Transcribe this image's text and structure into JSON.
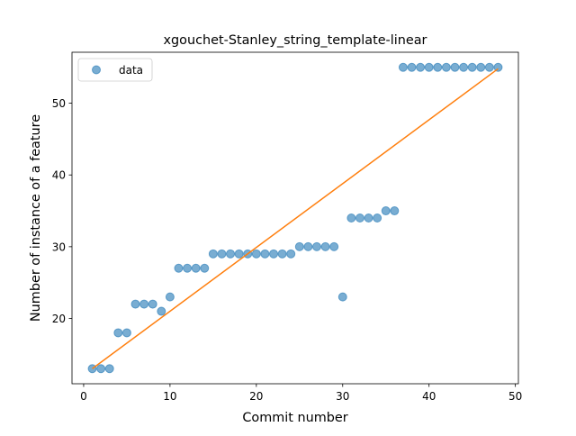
{
  "chart_data": {
    "type": "scatter",
    "title": "xgouchet-Stanley_string_template-linear",
    "xlabel": "Commit number",
    "ylabel": "Number of instance of a feature",
    "xlim": [
      -1.35,
      50.35
    ],
    "ylim": [
      10.9,
      57.1
    ],
    "x_ticks": [
      0,
      10,
      20,
      30,
      40,
      50
    ],
    "y_ticks": [
      20,
      30,
      40,
      50
    ],
    "grid": false,
    "legend": {
      "position": "top-left",
      "entries": [
        "data"
      ]
    },
    "series": [
      {
        "name": "data",
        "kind": "scatter",
        "color": "#1f77b4",
        "x": [
          1,
          2,
          3,
          4,
          5,
          6,
          7,
          8,
          9,
          10,
          11,
          12,
          13,
          14,
          15,
          16,
          17,
          18,
          19,
          20,
          21,
          22,
          23,
          24,
          25,
          26,
          27,
          28,
          29,
          30,
          31,
          32,
          33,
          34,
          35,
          36,
          37,
          38,
          39,
          40,
          41,
          42,
          43,
          44,
          45,
          46,
          47,
          48
        ],
        "y": [
          13,
          13,
          13,
          18,
          18,
          22,
          22,
          22,
          21,
          23,
          27,
          27,
          27,
          27,
          29,
          29,
          29,
          29,
          29,
          29,
          29,
          29,
          29,
          29,
          30,
          30,
          30,
          30,
          30,
          23,
          34,
          34,
          34,
          34,
          35,
          35,
          55,
          55,
          55,
          55,
          55,
          55,
          55,
          55,
          55,
          55,
          55,
          55
        ]
      },
      {
        "kind": "line",
        "color": "#ff7f0e",
        "x": [
          1,
          48
        ],
        "y": [
          13.0,
          54.8
        ]
      }
    ]
  }
}
